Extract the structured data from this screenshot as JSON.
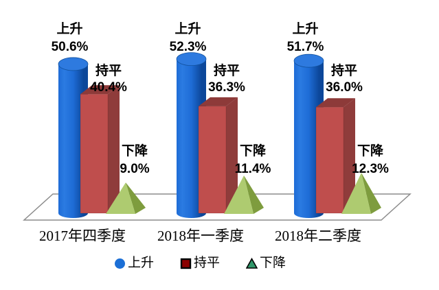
{
  "chart_data": {
    "type": "bar",
    "style": "3d-pictograph-column",
    "title": "",
    "categories": [
      "2017年四季度",
      "2018年一季度",
      "2018年二季度"
    ],
    "series": [
      {
        "name": "上升",
        "shape": "cylinder",
        "color": "#1B6FD6",
        "values": [
          50.6,
          52.3,
          51.7
        ]
      },
      {
        "name": "持平",
        "shape": "box",
        "color": "#BF4E4D",
        "values": [
          40.4,
          36.3,
          36.0
        ]
      },
      {
        "name": "下降",
        "shape": "pyramid",
        "color": "#AECB70",
        "values": [
          9.0,
          11.4,
          12.3
        ]
      }
    ],
    "value_label_format": "{value}%",
    "ylim": [
      0,
      60
    ],
    "grid": false,
    "legend_position": "bottom",
    "legend": [
      {
        "label": "上升",
        "marker": "circle",
        "color": "#1B6FD6",
        "border": "none"
      },
      {
        "label": "持平",
        "marker": "square",
        "color": "#8B0100",
        "border": "#000000"
      },
      {
        "label": "下降",
        "marker": "triangle",
        "color": "#2F9669",
        "border": "#000000"
      }
    ]
  },
  "colors": {
    "background": "#FFFFFF",
    "floor_fill": "#FFFFFF",
    "floor_stroke": "#8C8C8C",
    "cylinder_light": "#2B7BE2",
    "cylinder_mid": "#1E6CD6",
    "cylinder_dark": "#0C479A",
    "cylinder_top": "#2E7ADF",
    "cylinder_top_rim": "#11519E",
    "box_front": "#BF4E4D",
    "box_top": "#8D3A39",
    "box_side": "#8F3C3B",
    "pyramid_light": "#AECB70",
    "pyramid_dark": "#7E9C3E",
    "label_text": "#000000"
  }
}
